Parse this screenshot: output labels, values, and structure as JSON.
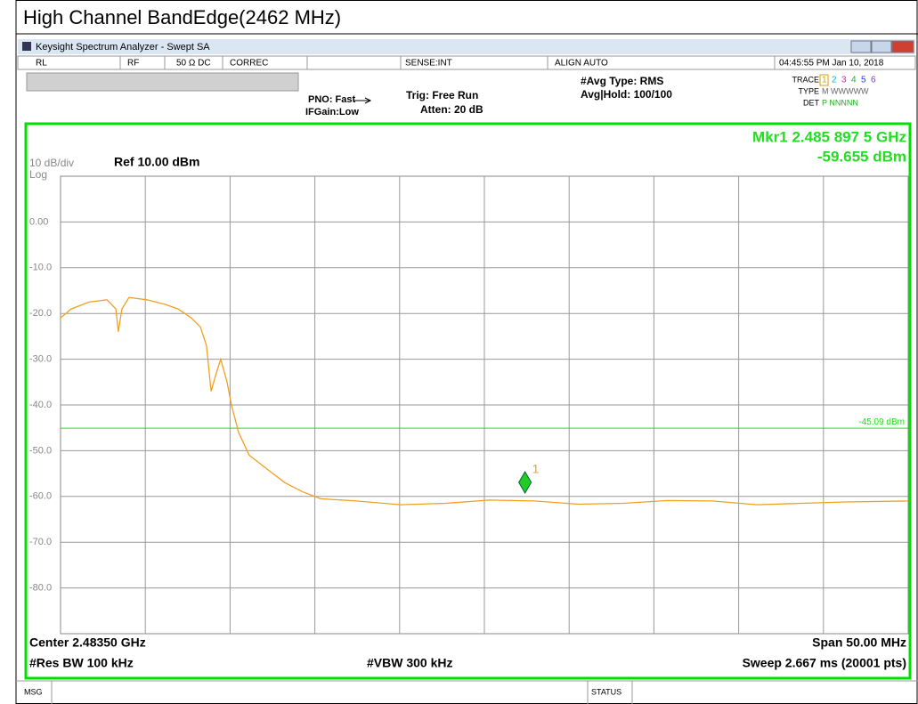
{
  "page_title": "High Channel BandEdge(2462 MHz)",
  "window_title": "Keysight Spectrum Analyzer - Swept SA",
  "status_row": [
    "RL",
    "RF",
    "50 Ω  DC",
    "CORREC",
    "SENSE:INT",
    "ALIGN AUTO",
    "04:45:55 PM Jan 10, 2018"
  ],
  "settings": {
    "pno": "PNO: Fast",
    "ifgain": "IFGain:Low",
    "trig": "Trig: Free Run",
    "atten": "Atten: 20 dB",
    "avg_type": "#Avg Type: RMS",
    "avg_hold": "Avg|Hold: 100/100"
  },
  "trace_panel": {
    "trace_label": "TRACE",
    "trace_numbers": [
      "1",
      "2",
      "3",
      "4",
      "5",
      "6"
    ],
    "type_label": "TYPE",
    "type_values": "M WWWWW",
    "det_label": "DET",
    "det_values": "P NNNNN"
  },
  "footer": {
    "msg": "MSG",
    "status": "STATUS"
  },
  "chart_data": {
    "type": "line",
    "color": "#f0a020",
    "scale_label": "10 dB/div",
    "scale_type": "Log",
    "ref_level": "Ref 10.00 dBm",
    "center": "Center 2.48350 GHz",
    "span": "Span 50.00 MHz",
    "rbw": "#Res BW 100 kHz",
    "vbw": "#VBW 300 kHz",
    "sweep": "Sweep  2.667 ms (20001 pts)",
    "xlim": [
      2.4585,
      2.5085
    ],
    "ylim": [
      -90,
      10
    ],
    "yticks": [
      {
        "value": 0,
        "label": "0.00"
      },
      {
        "value": -10,
        "label": "-10.0"
      },
      {
        "value": -20,
        "label": "-20.0"
      },
      {
        "value": -30,
        "label": "-30.0"
      },
      {
        "value": -40,
        "label": "-40.0"
      },
      {
        "value": -50,
        "label": "-50.0"
      },
      {
        "value": -60,
        "label": "-60.0"
      },
      {
        "value": -70,
        "label": "-70.0"
      },
      {
        "value": -80,
        "label": "-80.0"
      }
    ],
    "display_line": {
      "value": -45.09,
      "label": "-45.09 dBm"
    },
    "marker": {
      "label": "1",
      "x": 2.4858975,
      "y": -59.655,
      "readout_freq": "Mkr1 2.485 897 5 GHz",
      "readout_amp": "-59.655 dBm"
    },
    "x": [
      2.4585,
      2.45913,
      2.46018,
      2.46123,
      2.46176,
      2.46191,
      2.46212,
      2.46254,
      2.46359,
      2.46465,
      2.46543,
      2.46622,
      2.46675,
      2.46711,
      2.46738,
      2.46769,
      2.46795,
      2.46832,
      2.46858,
      2.469,
      2.46963,
      2.47068,
      2.47174,
      2.47279,
      2.47384,
      2.47594,
      2.47856,
      2.48119,
      2.48381,
      2.48644,
      2.48906,
      2.49169,
      2.49431,
      2.49694,
      2.49957,
      2.5022,
      2.50482,
      2.5085
    ],
    "values": [
      -21,
      -19,
      -17.5,
      -17,
      -19,
      -24,
      -19,
      -16.5,
      -17,
      -18,
      -19,
      -21,
      -23,
      -27,
      -37,
      -33,
      -30,
      -35,
      -40,
      -46,
      -51,
      -54,
      -57,
      -59,
      -60.5,
      -61,
      -61.8,
      -61.5,
      -60.8,
      -61,
      -61.7,
      -61.5,
      -60.9,
      -61,
      -61.8,
      -61.5,
      -61.2,
      -61
    ]
  }
}
